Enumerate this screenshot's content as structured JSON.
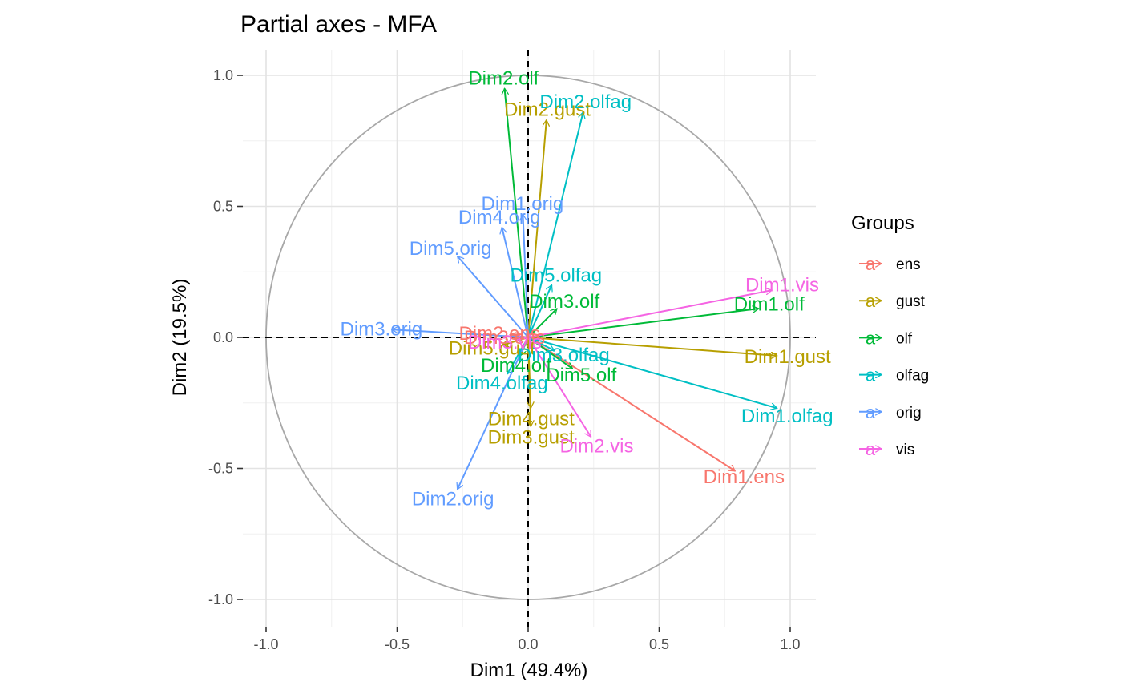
{
  "chart_data": {
    "type": "scatter",
    "title": "Partial axes - MFA",
    "xlabel": "Dim1 (49.4%)",
    "ylabel": "Dim2 (19.5%)",
    "xlim": [
      -1.1,
      1.1
    ],
    "ylim": [
      -1.1,
      1.1
    ],
    "x_ticks": [
      -1.0,
      -0.5,
      0.0,
      0.5,
      1.0
    ],
    "y_ticks": [
      -1.0,
      -0.5,
      0.0,
      0.5,
      1.0
    ],
    "x_tick_labels": [
      "-1.0",
      "-0.5",
      "0.0",
      "0.5",
      "1.0"
    ],
    "y_tick_labels": [
      "-1.0",
      "-0.5",
      "0.0",
      "0.5",
      "1.0"
    ],
    "grid": true,
    "correlation_circle": true,
    "legend": {
      "title": "Groups",
      "position": "right",
      "glyph": "a",
      "entries": [
        {
          "name": "ens",
          "color": "#F8766D"
        },
        {
          "name": "gust",
          "color": "#B79F00"
        },
        {
          "name": "olf",
          "color": "#00BA38"
        },
        {
          "name": "olfag",
          "color": "#00BFC4"
        },
        {
          "name": "orig",
          "color": "#619CFF"
        },
        {
          "name": "vis",
          "color": "#F564E3"
        }
      ]
    },
    "arrows": [
      {
        "label": "Dim1.ens",
        "group": "ens",
        "x": 0.79,
        "y": -0.51
      },
      {
        "label": "Dim2.ens",
        "group": "ens",
        "x": -0.07,
        "y": 0.01
      },
      {
        "label": "Dim3.ens",
        "group": "ens",
        "x": -0.05,
        "y": 0.0
      },
      {
        "label": "Dim1.gust",
        "group": "gust",
        "x": 0.95,
        "y": -0.07
      },
      {
        "label": "Dim2.gust",
        "group": "gust",
        "x": 0.07,
        "y": 0.83
      },
      {
        "label": "Dim3.gust",
        "group": "gust",
        "x": 0.01,
        "y": -0.34
      },
      {
        "label": "Dim4.gust",
        "group": "gust",
        "x": 0.01,
        "y": -0.27
      },
      {
        "label": "Dim5.gust",
        "group": "gust",
        "x": -0.1,
        "y": -0.03
      },
      {
        "label": "Dim1.olf",
        "group": "olf",
        "x": 0.88,
        "y": 0.11
      },
      {
        "label": "Dim2.olf",
        "group": "olf",
        "x": -0.09,
        "y": 0.95
      },
      {
        "label": "Dim3.olf",
        "group": "olf",
        "x": 0.11,
        "y": 0.11
      },
      {
        "label": "Dim4.olf",
        "group": "olf",
        "x": -0.03,
        "y": -0.07
      },
      {
        "label": "Dim5.olf",
        "group": "olf",
        "x": 0.17,
        "y": -0.12
      },
      {
        "label": "Dim1.olfag",
        "group": "olfag",
        "x": 0.95,
        "y": -0.27
      },
      {
        "label": "Dim2.olfag",
        "group": "olfag",
        "x": 0.21,
        "y": 0.86
      },
      {
        "label": "Dim3.olfag",
        "group": "olfag",
        "x": 0.1,
        "y": -0.05
      },
      {
        "label": "Dim4.olfag",
        "group": "olfag",
        "x": -0.08,
        "y": -0.14
      },
      {
        "label": "Dim5.olfag",
        "group": "olfag",
        "x": 0.09,
        "y": 0.2
      },
      {
        "label": "Dim1.orig",
        "group": "orig",
        "x": -0.02,
        "y": 0.47
      },
      {
        "label": "Dim2.orig",
        "group": "orig",
        "x": -0.27,
        "y": -0.58
      },
      {
        "label": "Dim3.orig",
        "group": "orig",
        "x": -0.52,
        "y": 0.03
      },
      {
        "label": "Dim4.orig",
        "group": "orig",
        "x": -0.1,
        "y": 0.42
      },
      {
        "label": "Dim5.orig",
        "group": "orig",
        "x": -0.27,
        "y": 0.31
      },
      {
        "label": "Dim1.vis",
        "group": "vis",
        "x": 0.93,
        "y": 0.18
      },
      {
        "label": "Dim2.vis",
        "group": "vis",
        "x": 0.24,
        "y": -0.38
      },
      {
        "label": "Dim3.vis",
        "group": "vis",
        "x": -0.05,
        "y": -0.01
      }
    ]
  }
}
